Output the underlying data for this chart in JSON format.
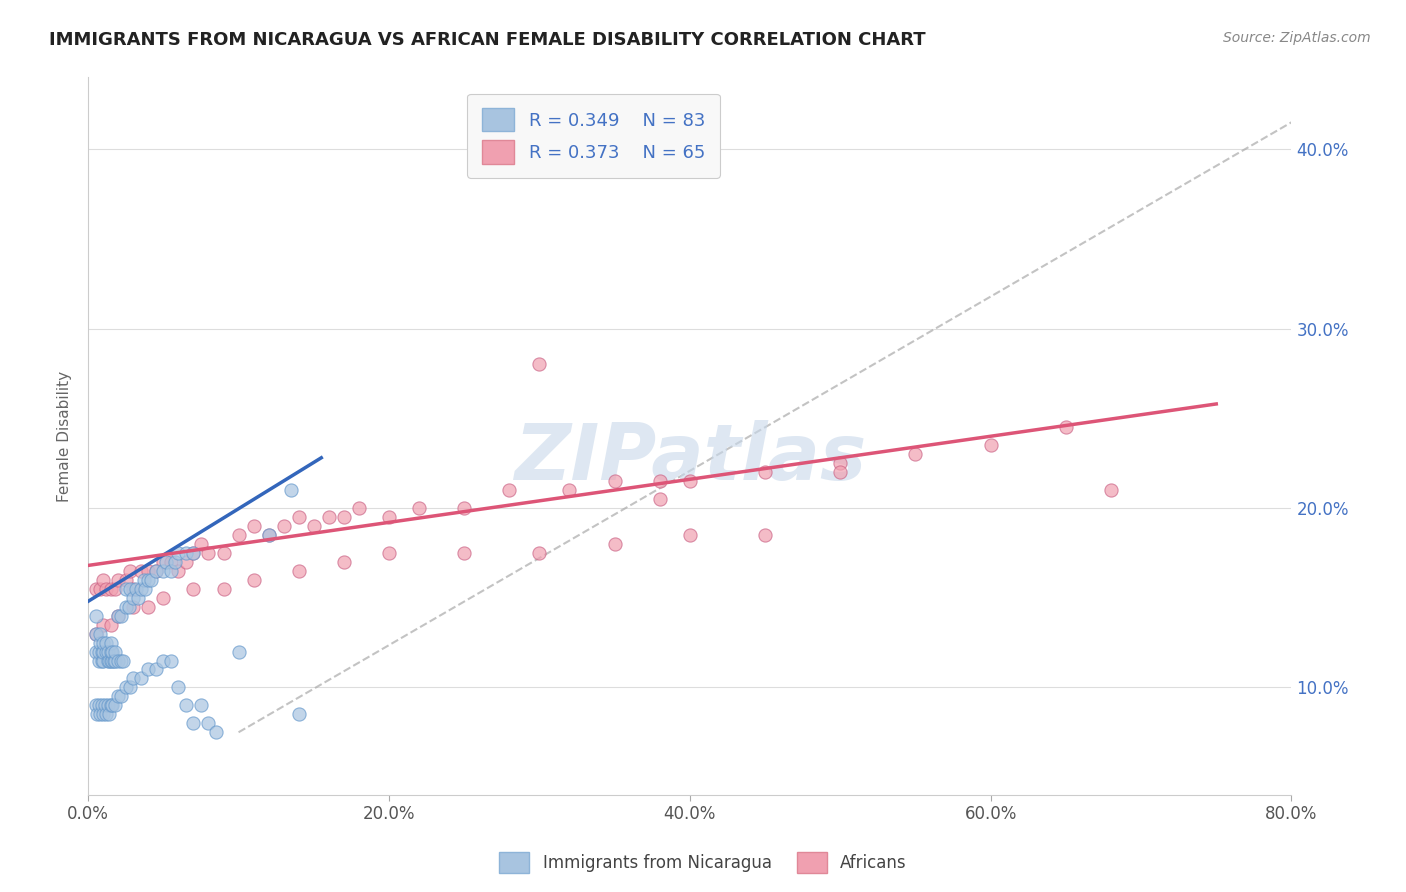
{
  "title": "IMMIGRANTS FROM NICARAGUA VS AFRICAN FEMALE DISABILITY CORRELATION CHART",
  "source": "Source: ZipAtlas.com",
  "ylabel": "Female Disability",
  "watermark": "ZIPatlas",
  "xlim": [
    0.0,
    0.8
  ],
  "ylim": [
    0.04,
    0.44
  ],
  "xtick_labels": [
    "0.0%",
    "20.0%",
    "40.0%",
    "60.0%",
    "80.0%"
  ],
  "xtick_values": [
    0.0,
    0.2,
    0.4,
    0.6,
    0.8
  ],
  "ytick_labels": [
    "10.0%",
    "20.0%",
    "30.0%",
    "40.0%"
  ],
  "ytick_values": [
    0.1,
    0.2,
    0.3,
    0.4
  ],
  "legend_labels": [
    "Immigrants from Nicaragua",
    "Africans"
  ],
  "series1": {
    "label": "Immigrants from Nicaragua",
    "color": "#a8c4e0",
    "edge_color": "#6699cc",
    "R": 0.349,
    "N": 83,
    "scatter_x": [
      0.005,
      0.005,
      0.005,
      0.007,
      0.007,
      0.008,
      0.008,
      0.009,
      0.009,
      0.01,
      0.01,
      0.01,
      0.012,
      0.012,
      0.013,
      0.013,
      0.014,
      0.015,
      0.015,
      0.015,
      0.016,
      0.016,
      0.017,
      0.018,
      0.018,
      0.02,
      0.02,
      0.022,
      0.022,
      0.023,
      0.025,
      0.025,
      0.027,
      0.028,
      0.03,
      0.032,
      0.033,
      0.035,
      0.037,
      0.038,
      0.04,
      0.042,
      0.045,
      0.05,
      0.052,
      0.055,
      0.058,
      0.06,
      0.065,
      0.07,
      0.005,
      0.006,
      0.007,
      0.008,
      0.009,
      0.01,
      0.011,
      0.012,
      0.013,
      0.014,
      0.015,
      0.016,
      0.018,
      0.02,
      0.022,
      0.025,
      0.028,
      0.03,
      0.035,
      0.04,
      0.045,
      0.05,
      0.055,
      0.06,
      0.065,
      0.07,
      0.075,
      0.08,
      0.085,
      0.1,
      0.12,
      0.135,
      0.14
    ],
    "scatter_y": [
      0.12,
      0.13,
      0.14,
      0.115,
      0.12,
      0.125,
      0.13,
      0.115,
      0.12,
      0.115,
      0.12,
      0.125,
      0.12,
      0.125,
      0.115,
      0.12,
      0.115,
      0.115,
      0.12,
      0.125,
      0.115,
      0.12,
      0.115,
      0.115,
      0.12,
      0.115,
      0.14,
      0.115,
      0.14,
      0.115,
      0.145,
      0.155,
      0.145,
      0.155,
      0.15,
      0.155,
      0.15,
      0.155,
      0.16,
      0.155,
      0.16,
      0.16,
      0.165,
      0.165,
      0.17,
      0.165,
      0.17,
      0.175,
      0.175,
      0.175,
      0.09,
      0.085,
      0.09,
      0.085,
      0.09,
      0.085,
      0.09,
      0.085,
      0.09,
      0.085,
      0.09,
      0.09,
      0.09,
      0.095,
      0.095,
      0.1,
      0.1,
      0.105,
      0.105,
      0.11,
      0.11,
      0.115,
      0.115,
      0.1,
      0.09,
      0.08,
      0.09,
      0.08,
      0.075,
      0.12,
      0.185,
      0.21,
      0.085
    ],
    "trend_x": [
      0.0,
      0.155
    ],
    "trend_y": [
      0.148,
      0.228
    ]
  },
  "series2": {
    "label": "Africans",
    "color": "#f0a0b0",
    "edge_color": "#cc6688",
    "R": 0.373,
    "N": 65,
    "scatter_x": [
      0.005,
      0.008,
      0.01,
      0.012,
      0.015,
      0.018,
      0.02,
      0.025,
      0.028,
      0.03,
      0.035,
      0.04,
      0.045,
      0.05,
      0.055,
      0.06,
      0.065,
      0.07,
      0.075,
      0.08,
      0.09,
      0.1,
      0.11,
      0.12,
      0.13,
      0.14,
      0.15,
      0.16,
      0.17,
      0.18,
      0.2,
      0.22,
      0.25,
      0.28,
      0.3,
      0.32,
      0.35,
      0.38,
      0.4,
      0.45,
      0.5,
      0.55,
      0.6,
      0.65,
      0.68,
      0.005,
      0.01,
      0.015,
      0.02,
      0.03,
      0.04,
      0.05,
      0.07,
      0.09,
      0.11,
      0.14,
      0.17,
      0.2,
      0.25,
      0.3,
      0.35,
      0.4,
      0.45,
      0.5,
      0.38
    ],
    "scatter_y": [
      0.155,
      0.155,
      0.16,
      0.155,
      0.155,
      0.155,
      0.16,
      0.16,
      0.165,
      0.155,
      0.165,
      0.165,
      0.165,
      0.17,
      0.17,
      0.165,
      0.17,
      0.175,
      0.18,
      0.175,
      0.175,
      0.185,
      0.19,
      0.185,
      0.19,
      0.195,
      0.19,
      0.195,
      0.195,
      0.2,
      0.195,
      0.2,
      0.2,
      0.21,
      0.28,
      0.21,
      0.215,
      0.215,
      0.215,
      0.22,
      0.225,
      0.23,
      0.235,
      0.245,
      0.21,
      0.13,
      0.135,
      0.135,
      0.14,
      0.145,
      0.145,
      0.15,
      0.155,
      0.155,
      0.16,
      0.165,
      0.17,
      0.175,
      0.175,
      0.175,
      0.18,
      0.185,
      0.185,
      0.22,
      0.205
    ],
    "trend_x": [
      0.0,
      0.75
    ],
    "trend_y": [
      0.168,
      0.258
    ]
  },
  "dashed_line": {
    "x": [
      0.1,
      0.8
    ],
    "y": [
      0.075,
      0.415
    ]
  },
  "background_color": "#ffffff",
  "plot_bg_color": "#ffffff",
  "grid_color": "#dddddd",
  "title_color": "#222222",
  "axis_label_color": "#666666",
  "right_axis_color": "#4472c4",
  "watermark_color": "#c8d8ea"
}
